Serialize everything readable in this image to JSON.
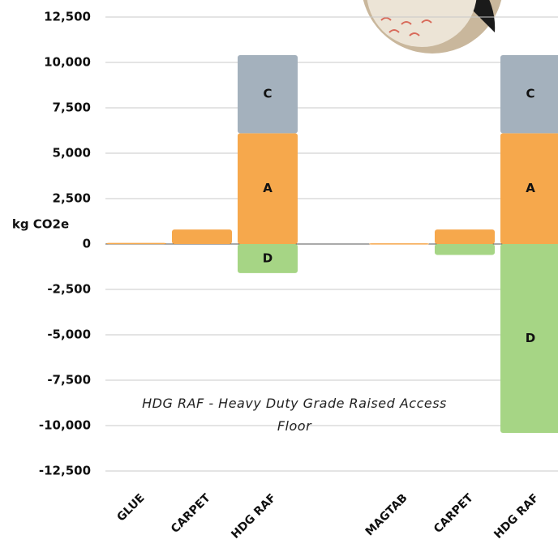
{
  "chart_data": {
    "type": "stacked_bar",
    "y_label": "kg CO2e",
    "annotation": "HDG RAF - Heavy Duty Grade Raised Access Floor",
    "categories": [
      "GLUE",
      "CARPET",
      "HDG RAF",
      null,
      "MAGTAB",
      "CARPET",
      "HDG RAF"
    ],
    "series": [
      {
        "name": "A",
        "color": "#f6a84c",
        "values": [
          60,
          800,
          6100,
          null,
          40,
          800,
          6100
        ]
      },
      {
        "name": "C",
        "color": "#a4b1bd",
        "values": [
          0,
          0,
          4300,
          null,
          0,
          0,
          4300
        ]
      },
      {
        "name": "D",
        "color": "#a6d585",
        "values": [
          0,
          0,
          -1600,
          null,
          0,
          -600,
          -10400
        ]
      }
    ],
    "ylim": [
      -12500,
      12500
    ],
    "yticks": [
      {
        "value": -12500,
        "label": "-12,500"
      },
      {
        "value": -10000,
        "label": "-10,000"
      },
      {
        "value": -7500,
        "label": "-7,500"
      },
      {
        "value": -5000,
        "label": "-5,000"
      },
      {
        "value": -2500,
        "label": "-2,500"
      },
      0,
      {
        "value": 2500,
        "label": "2,500"
      },
      {
        "value": 5000,
        "label": "5,000"
      },
      {
        "value": 7500,
        "label": "7,500"
      },
      {
        "value": 10000,
        "label": "10,000"
      },
      {
        "value": 12500,
        "label": "12,500"
      }
    ],
    "grid": true
  }
}
